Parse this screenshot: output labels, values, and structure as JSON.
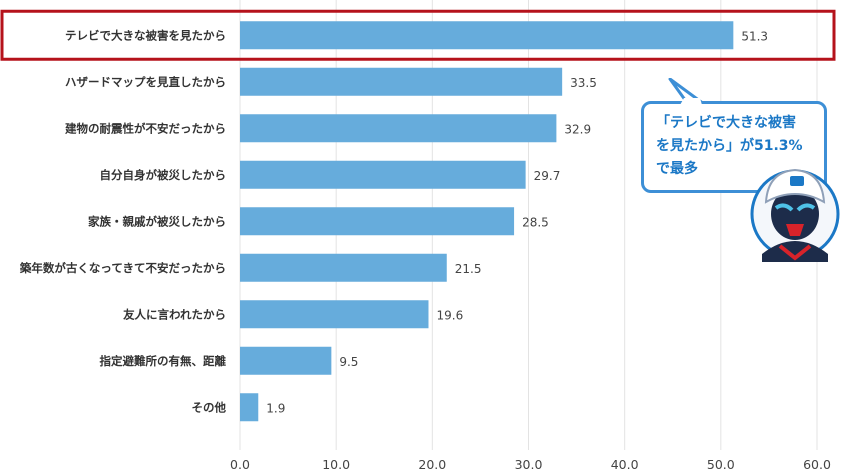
{
  "chart_data": {
    "type": "bar",
    "orientation": "horizontal",
    "categories": [
      "テレビで大きな被害を見たから",
      "ハザードマップを見直したから",
      "建物の耐震性が不安だったから",
      "自分自身が被災したから",
      "家族・親戚が被災したから",
      "築年数が古くなってきて不安だったから",
      "友人に言われたから",
      "指定避難所の有無、距離",
      "その他"
    ],
    "values": [
      51.3,
      33.5,
      32.9,
      29.7,
      28.5,
      21.5,
      19.6,
      9.5,
      1.9
    ],
    "value_labels": [
      "51.3",
      "33.5",
      "32.9",
      "29.7",
      "28.5",
      "21.5",
      "19.6",
      "9.5",
      "1.9"
    ],
    "xlim": [
      0,
      60
    ],
    "xticks": [
      "0.0",
      "10.0",
      "20.0",
      "30.0",
      "40.0",
      "50.0",
      "60.0"
    ],
    "highlight_index": 0,
    "grid": true,
    "title": "",
    "xlabel": "",
    "ylabel": ""
  },
  "callout": {
    "lines": [
      "「テレビで大きな被害",
      "を見たから」が51.3%",
      "で最多"
    ]
  },
  "colors": {
    "bar": "#66acdc",
    "highlight_border": "#b5121b",
    "grid": "#e3e3e3",
    "callout_border": "#3d8fd6",
    "callout_text": "#1b78c6"
  },
  "mascot_icon": "helmet-character-icon"
}
